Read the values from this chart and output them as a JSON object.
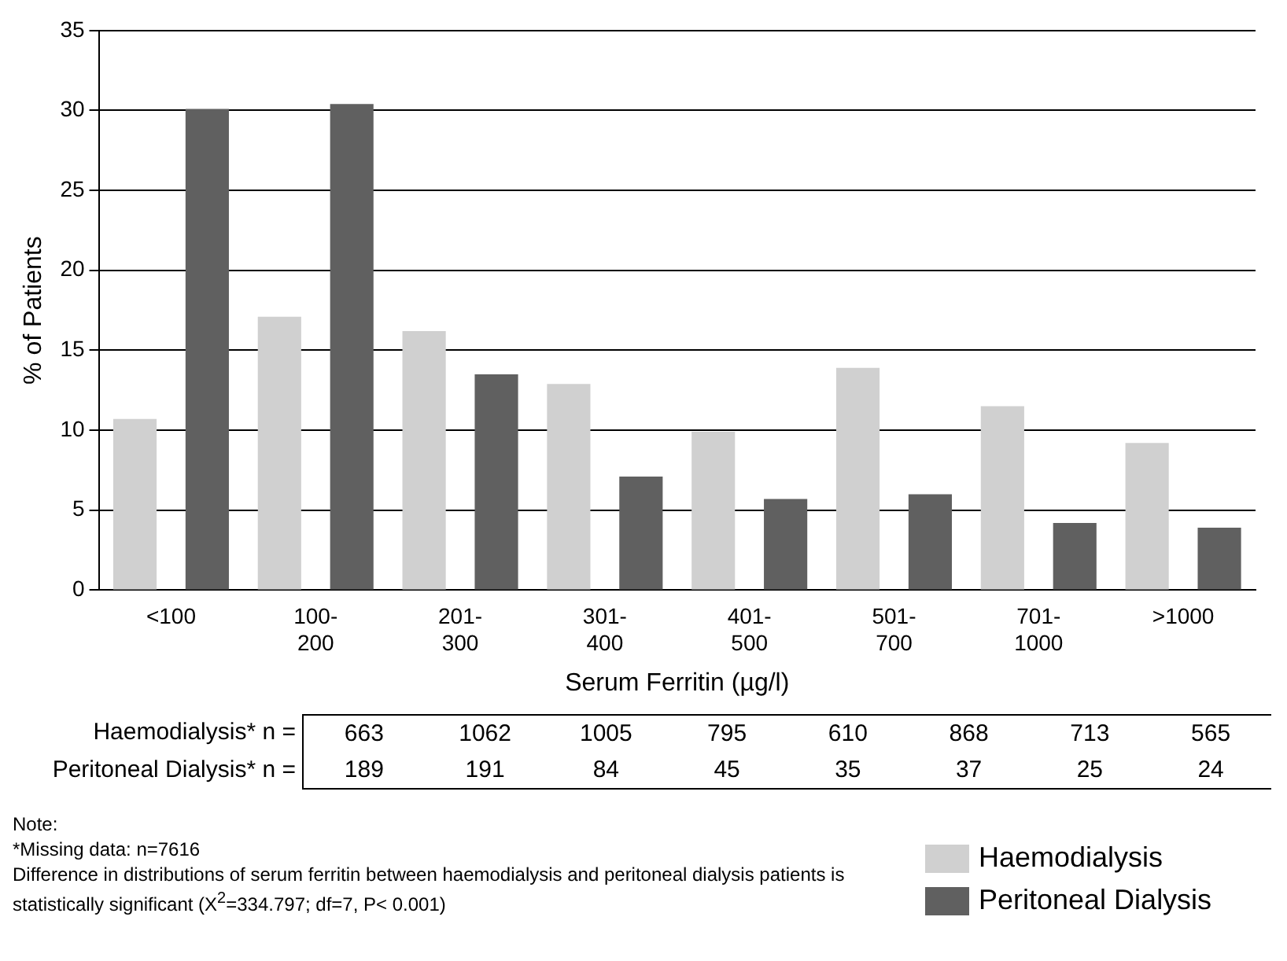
{
  "chart_data": {
    "type": "bar",
    "xlabel": "Serum Ferritin (µg/l)",
    "ylabel": "% of Patients",
    "categories": [
      "<100",
      "100-200",
      "201-300",
      "301-400",
      "401-500",
      "501-700",
      "701-1000",
      ">1000"
    ],
    "series": [
      {
        "name": "Haemodialysis",
        "color": "#d0d0d0",
        "values": [
          10.7,
          17.1,
          16.2,
          12.9,
          9.9,
          13.9,
          11.5,
          9.2
        ]
      },
      {
        "name": "Peritoneal Dialysis",
        "color": "#606060",
        "values": [
          30.1,
          30.4,
          13.5,
          7.1,
          5.7,
          6.0,
          4.2,
          3.9
        ]
      }
    ],
    "ylim": [
      0,
      35
    ],
    "yticks": [
      0,
      5,
      10,
      15,
      20,
      25,
      30,
      35
    ],
    "grid": "y",
    "legend": "bottom right",
    "annotations": [
      "Haemodialysis* n =",
      "663",
      "1062",
      "1005",
      "795",
      "610",
      "868",
      "713",
      "565",
      "Peritoneal Dialysis* n =",
      "189",
      "191",
      "84",
      "45",
      "35",
      "37",
      "25",
      "24",
      "Note:",
      "*Missing data: n=7616",
      "Difference in distributions of serum ferritin between haemodialysis and peritoneal dialysis patients is statistically significant (X$^{2}$=334.797; df=7, P< 0.001)"
    ]
  }
}
